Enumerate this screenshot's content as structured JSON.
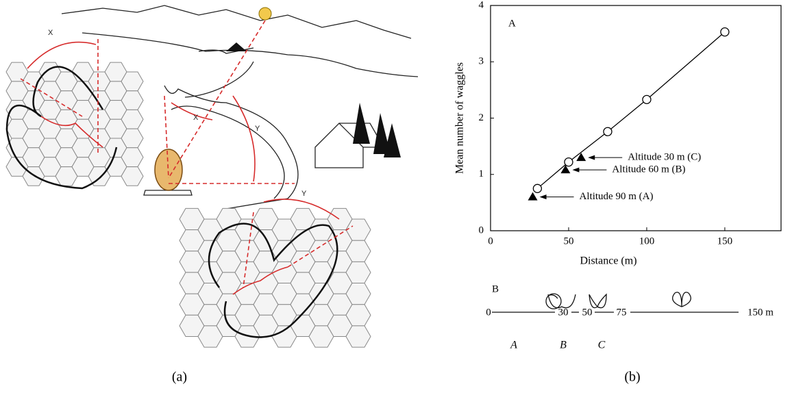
{
  "figure_a": {
    "labels": [
      "X",
      "X",
      "Y",
      "Y"
    ],
    "caption": "(a)"
  },
  "chart_data": {
    "type": "line",
    "panel_label": "A",
    "xlabel": "Distance (m)",
    "ylabel": "Mean number of waggles",
    "xlim": [
      0,
      186
    ],
    "ylim": [
      0,
      4
    ],
    "xticks": [
      0,
      50,
      100,
      150
    ],
    "yticks": [
      0,
      1,
      2,
      3,
      4
    ],
    "series": [
      {
        "color": "#000000",
        "marker": "circle",
        "line": true,
        "x": [
          30,
          50,
          75,
          100,
          150
        ],
        "values": [
          0.75,
          1.22,
          1.76,
          2.33,
          3.53
        ]
      },
      {
        "color": "#000000",
        "marker": "triangle",
        "line": false,
        "x": [
          27,
          48,
          58
        ],
        "values": [
          0.6,
          1.08,
          1.3
        ]
      }
    ],
    "annotations": [
      "Altitude 90 m (A)",
      "Altitude 60 m (B)",
      "Altitude 30 m (C)"
    ],
    "caption": "(b)"
  },
  "diagram_b": {
    "label": "B",
    "scale_labels": [
      "0",
      "30",
      "50",
      "75",
      "150 m"
    ],
    "segment_labels": [
      "A",
      "B",
      "C"
    ]
  }
}
